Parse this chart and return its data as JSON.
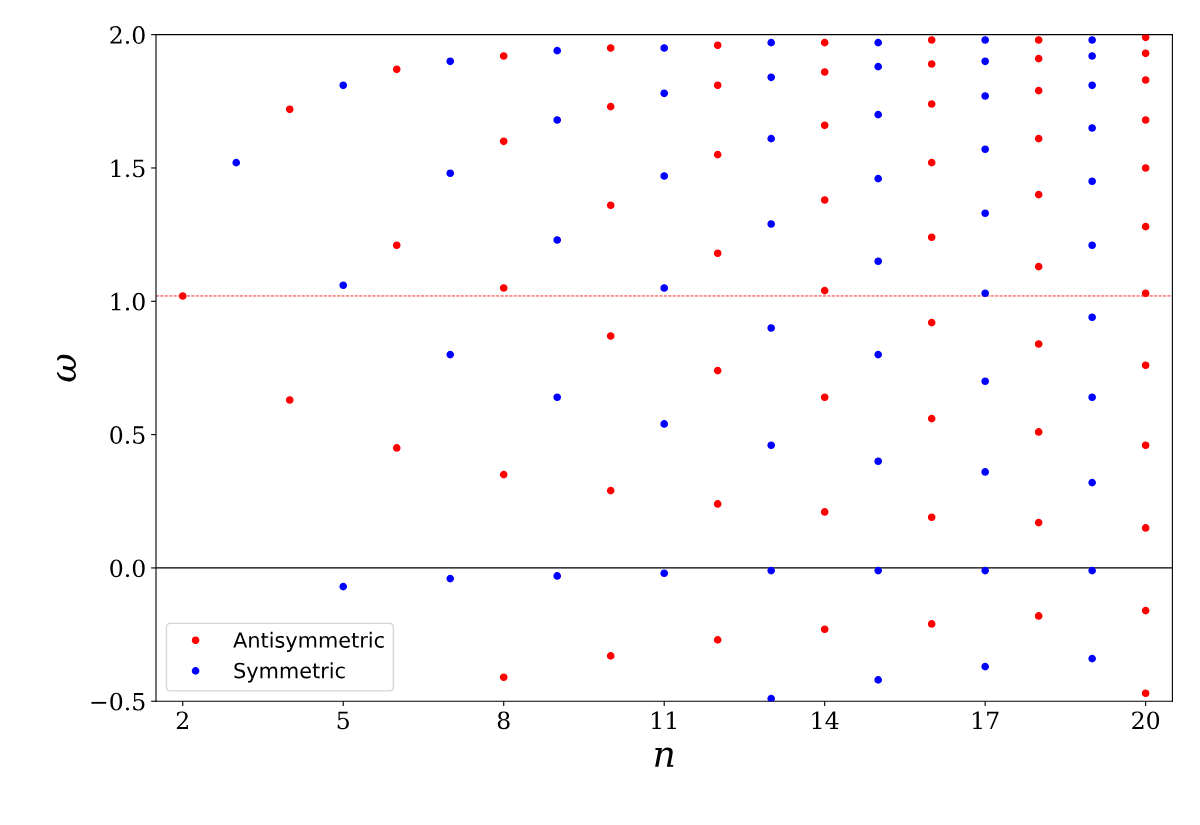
{
  "chart_data": {
    "type": "scatter",
    "xlabel": "n",
    "ylabel": "ω",
    "xlim": [
      1.5,
      20.5
    ],
    "ylim": [
      -0.5,
      2.0
    ],
    "xticks": [
      2,
      5,
      8,
      11,
      14,
      17,
      20
    ],
    "yticks": [
      {
        "value": -0.5,
        "label": "−0.5"
      },
      {
        "value": 0,
        "label": "0.0"
      },
      {
        "value": 0.5,
        "label": "0.5"
      },
      {
        "value": 1.0,
        "label": "1.0"
      },
      {
        "value": 1.5,
        "label": "1.5"
      },
      {
        "value": 2.0,
        "label": "2.0"
      }
    ],
    "grid": false,
    "legend": "bottom left",
    "marker": "circle",
    "ref_lines": [
      {
        "axis": "y",
        "value": 1.02,
        "color": "#ff0000",
        "line_style": "dashed"
      },
      {
        "axis": "y",
        "value": 0,
        "color": "#000000",
        "line_style": "solid"
      }
    ],
    "series": [
      {
        "name": "Antisymmetric",
        "color": "#ff0000",
        "x": [
          2,
          4,
          4,
          6,
          6,
          6,
          8,
          8,
          8,
          8,
          8,
          10,
          10,
          10,
          10,
          10,
          10,
          12,
          12,
          12,
          12,
          12,
          12,
          12,
          14,
          14,
          14,
          14,
          14,
          14,
          14,
          14,
          16,
          16,
          16,
          16,
          16,
          16,
          16,
          16,
          16,
          18,
          18,
          18,
          18,
          18,
          18,
          18,
          18,
          18,
          18,
          20,
          20,
          20,
          20,
          20,
          20,
          20,
          20,
          20,
          20,
          20,
          20
        ],
        "values": [
          1.02,
          1.72,
          0.63,
          1.87,
          1.21,
          0.45,
          1.92,
          1.6,
          1.05,
          0.35,
          -0.41,
          1.95,
          1.73,
          1.36,
          0.87,
          0.29,
          -0.33,
          1.96,
          1.81,
          1.55,
          1.18,
          0.74,
          0.24,
          -0.27,
          1.97,
          1.86,
          1.66,
          1.38,
          1.04,
          0.64,
          0.21,
          -0.23,
          1.98,
          1.89,
          1.74,
          1.52,
          1.24,
          0.92,
          0.56,
          0.19,
          -0.21,
          1.98,
          1.91,
          1.79,
          1.61,
          1.4,
          1.13,
          0.84,
          0.51,
          0.17,
          -0.18,
          1.99,
          1.93,
          1.83,
          1.68,
          1.5,
          1.28,
          1.03,
          0.76,
          0.46,
          0.15,
          -0.16,
          -0.47
        ]
      },
      {
        "name": "Symmetric",
        "color": "#0000ff",
        "x": [
          3,
          5,
          5,
          5,
          7,
          7,
          7,
          7,
          9,
          9,
          9,
          9,
          9,
          11,
          11,
          11,
          11,
          11,
          11,
          13,
          13,
          13,
          13,
          13,
          13,
          13,
          13,
          15,
          15,
          15,
          15,
          15,
          15,
          15,
          15,
          15,
          17,
          17,
          17,
          17,
          17,
          17,
          17,
          17,
          17,
          17,
          19,
          19,
          19,
          19,
          19,
          19,
          19,
          19,
          19,
          19,
          19
        ],
        "values": [
          1.52,
          1.81,
          1.06,
          -0.07,
          1.9,
          1.48,
          0.8,
          -0.04,
          1.94,
          1.68,
          1.23,
          0.64,
          -0.03,
          1.95,
          1.78,
          1.47,
          1.05,
          0.54,
          -0.02,
          1.97,
          1.84,
          1.61,
          1.29,
          0.9,
          0.46,
          -0.01,
          -0.49,
          1.97,
          1.88,
          1.7,
          1.46,
          1.15,
          0.8,
          0.4,
          -0.01,
          -0.42,
          1.98,
          1.9,
          1.77,
          1.57,
          1.33,
          1.03,
          0.7,
          0.36,
          -0.01,
          -0.37,
          1.98,
          1.92,
          1.81,
          1.65,
          1.45,
          1.21,
          0.94,
          0.64,
          0.32,
          -0.01,
          -0.34
        ]
      }
    ]
  }
}
